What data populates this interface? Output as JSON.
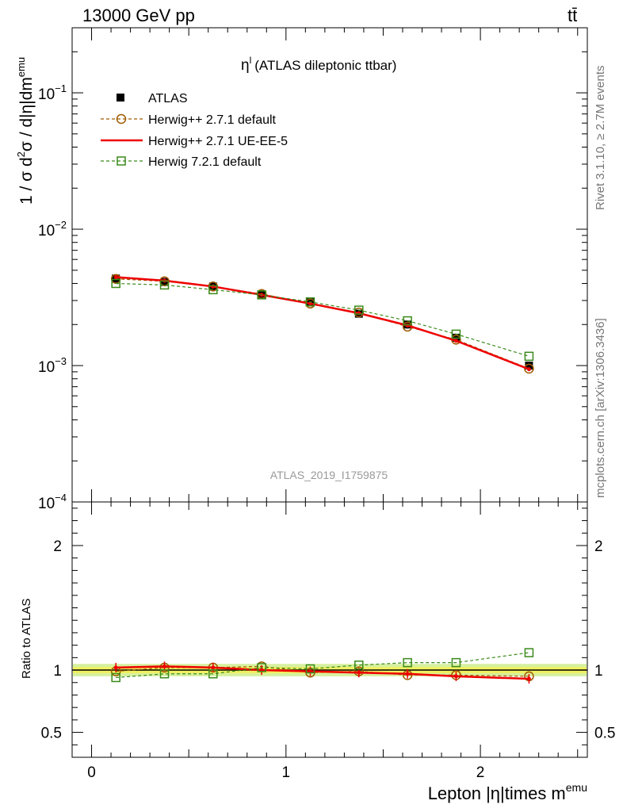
{
  "header": {
    "energy_label": "13000 GeV pp",
    "process_label": "tt̄"
  },
  "side_labels": {
    "rivet": "Rivet 3.1.10, ≥ 2.7M events",
    "mcplots": "mcplots.cern.ch [arXiv:1306.3436]"
  },
  "plot_title": {
    "symbol": "η",
    "superscript": "l",
    "text": "(ATLAS dileptonic ttbar)"
  },
  "watermark": "ATLAS_2019_I1759875",
  "axes": {
    "ylabel_main": {
      "part1": "1 / σ d",
      "sup1": "2",
      "part2": "σ / d|η|dm",
      "sup2": "emu"
    },
    "ylabel_ratio": "Ratio to ATLAS",
    "xlabel": {
      "text": "Lepton |η|times m",
      "sup": "emu"
    }
  },
  "colors": {
    "data": "#000000",
    "herwig_default": "#a05a00",
    "herwig_ueee5": "#ee0000",
    "herwig7": "#3a8a1a",
    "band_inner": "#f0f060",
    "band_outer": "#d6f0a0"
  },
  "chart_data": [
    {
      "type": "scatter",
      "panel": "main",
      "yscale": "log",
      "xlim": [
        -0.1,
        2.55
      ],
      "ylim": [
        0.0001,
        0.3
      ],
      "y_ticks": [
        {
          "value": 0.1,
          "base": "10",
          "exp": "−1"
        },
        {
          "value": 0.01,
          "base": "10",
          "exp": "−2"
        },
        {
          "value": 0.001,
          "base": "10",
          "exp": "−3"
        },
        {
          "value": 0.0001,
          "base": "10",
          "exp": "−4"
        }
      ],
      "x": [
        0.125,
        0.375,
        0.625,
        0.875,
        1.125,
        1.375,
        1.625,
        1.875,
        2.25
      ],
      "series": [
        {
          "name": "ATLAS",
          "key": "data",
          "style": "square-filled",
          "values": [
            0.00435,
            0.0041,
            0.0038,
            0.0033,
            0.0029,
            0.0024,
            0.002,
            0.0016,
            0.001
          ]
        },
        {
          "name": "Herwig++ 2.7.1 default",
          "key": "herwig_default",
          "style": "dashed-circle",
          "values": [
            0.00432,
            0.00415,
            0.0038,
            0.00335,
            0.00285,
            0.00245,
            0.00193,
            0.00155,
            0.00095
          ]
        },
        {
          "name": "Herwig++ 2.7.1 UE-EE-5",
          "key": "herwig_ueee5",
          "style": "solid",
          "values": [
            0.00445,
            0.0042,
            0.0038,
            0.0033,
            0.00285,
            0.00242,
            0.00197,
            0.00152,
            0.00094
          ]
        },
        {
          "name": "Herwig 7.2.1 default",
          "key": "herwig7",
          "style": "dashed-square",
          "values": [
            0.004,
            0.0039,
            0.0036,
            0.0033,
            0.00293,
            0.00255,
            0.00213,
            0.0017,
            0.00117
          ]
        }
      ]
    },
    {
      "type": "line",
      "panel": "ratio",
      "ylim": [
        0.3,
        2.35
      ],
      "y_ticks": [
        0.5,
        1,
        2
      ],
      "x_ticks": [
        0,
        1,
        2
      ],
      "xlim": [
        -0.1,
        2.55
      ],
      "x": [
        0.125,
        0.375,
        0.625,
        0.875,
        1.125,
        1.375,
        1.625,
        1.875,
        2.25
      ],
      "series": [
        {
          "name": "Herwig++ 2.7.1 default",
          "key": "herwig_default",
          "style": "dashed-circle",
          "values": [
            0.99,
            1.02,
            1.02,
            1.03,
            0.98,
            0.99,
            0.96,
            0.96,
            0.95
          ]
        },
        {
          "name": "Herwig++ 2.7.1 UE-EE-5",
          "key": "herwig_ueee5",
          "style": "solid",
          "values": [
            1.02,
            1.03,
            1.02,
            1.0,
            0.99,
            0.98,
            0.97,
            0.95,
            0.93
          ]
        },
        {
          "name": "Herwig 7.2.1 default",
          "key": "herwig7",
          "style": "dashed-square",
          "values": [
            0.94,
            0.97,
            0.97,
            1.02,
            1.01,
            1.04,
            1.06,
            1.06,
            1.14
          ]
        }
      ]
    }
  ]
}
